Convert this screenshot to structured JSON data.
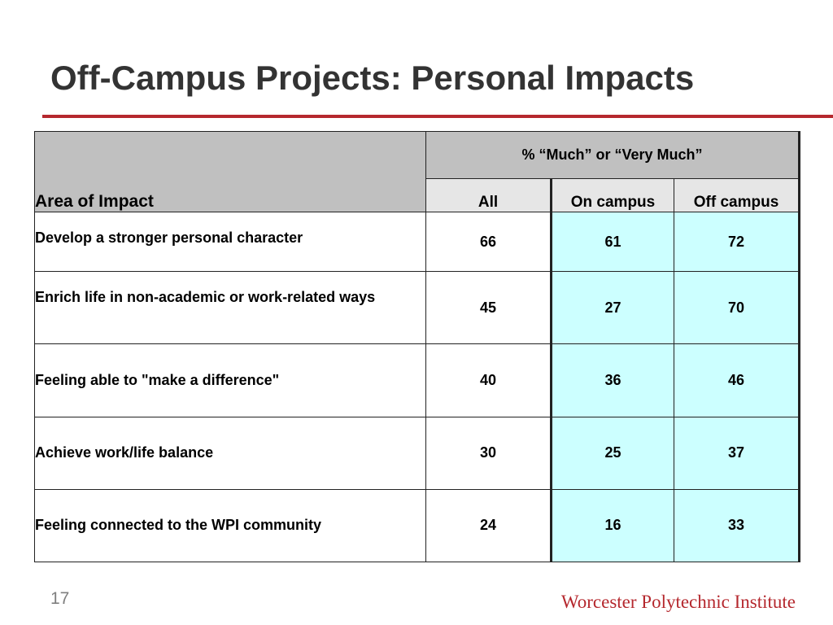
{
  "slide": {
    "title": "Off-Campus Projects:  Personal Impacts",
    "page_number": "17",
    "footer_brand": "Worcester Polytechnic Institute",
    "accent_color": "#b5282e"
  },
  "table": {
    "area_header": "Area of Impact",
    "group_header": "% “Much” or “Very Much”",
    "columns": [
      "All",
      "On campus",
      "Off campus"
    ],
    "rows": [
      {
        "label": "Develop a stronger personal character",
        "values": [
          "66",
          "61",
          "72"
        ]
      },
      {
        "label": "Enrich life in non-academic or work-related ways",
        "values": [
          "45",
          "27",
          "70"
        ]
      },
      {
        "label": "Feeling able to \"make a difference\"",
        "values": [
          "40",
          "36",
          "46"
        ]
      },
      {
        "label": "Achieve work/life balance",
        "values": [
          "30",
          "25",
          "37"
        ]
      },
      {
        "label": "Feeling connected to the WPI community",
        "values": [
          "24",
          "16",
          "33"
        ]
      }
    ]
  }
}
